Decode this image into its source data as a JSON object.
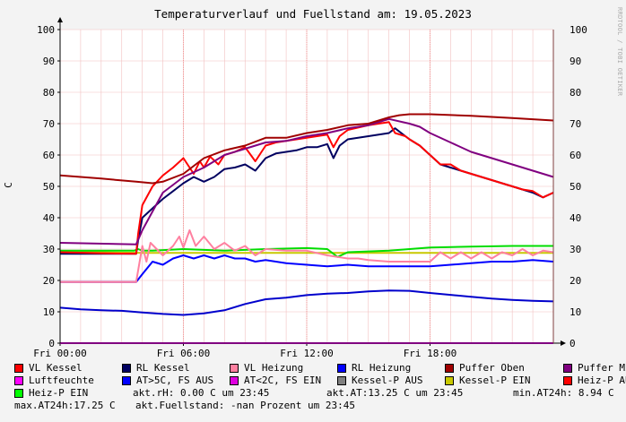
{
  "chart_data": {
    "type": "line",
    "title": "Temperaturverlauf und Fuellstand am: 19.05.2023",
    "side_label": "RRDTOOL / TOBI OETIKER",
    "ylabel": "C",
    "ylim": [
      0,
      100
    ],
    "yticks": [
      0,
      10,
      20,
      30,
      40,
      50,
      60,
      70,
      80,
      90,
      100
    ],
    "xlim_hours": [
      0,
      24
    ],
    "xticks": [
      {
        "h": 0,
        "label": "Fri 00:00"
      },
      {
        "h": 6,
        "label": "Fri 06:00"
      },
      {
        "h": 12,
        "label": "Fri 12:00"
      },
      {
        "h": 18,
        "label": "Fri 18:00"
      }
    ],
    "series": [
      {
        "name": "Puffer Oben",
        "color": "#a00000",
        "x": [
          0,
          2,
          3.7,
          4.5,
          5,
          6,
          7,
          8,
          9,
          10,
          11,
          12,
          13,
          14,
          15,
          16,
          16.5,
          17,
          18,
          20,
          22,
          24
        ],
        "y": [
          53.5,
          52.5,
          51.5,
          51,
          51.5,
          54,
          59,
          61.5,
          63,
          65.5,
          65.5,
          67,
          68,
          69.5,
          70,
          72,
          72.7,
          73,
          73,
          72.5,
          71.8,
          71
        ]
      },
      {
        "name": "Puffer Mitte",
        "color": "#800080",
        "x": [
          0,
          3.7,
          4,
          4.5,
          5,
          6,
          7,
          8,
          9,
          10,
          11,
          12,
          13,
          14,
          15,
          16,
          17,
          17.5,
          18,
          19,
          20,
          21,
          22,
          23,
          24
        ],
        "y": [
          32,
          31.5,
          36,
          42,
          48,
          53,
          56,
          60,
          62,
          64,
          64.5,
          66,
          67,
          68.5,
          69.5,
          71.5,
          70,
          69,
          67,
          64,
          61,
          59,
          57,
          55,
          53
        ]
      },
      {
        "name": "VL Kessel",
        "color": "#ff0000",
        "x": [
          0,
          2,
          3.7,
          3.8,
          4,
          4.5,
          5,
          5.5,
          6,
          6.5,
          6.8,
          7,
          7.3,
          7.7,
          8,
          8.5,
          9,
          9.5,
          10,
          10.5,
          11,
          12,
          13,
          13.3,
          13.6,
          14,
          15,
          16,
          16.3,
          16.8,
          17,
          17.5,
          18,
          18.5,
          19,
          19.5,
          20,
          20.5,
          21,
          21.5,
          22,
          22.5,
          23,
          23.5,
          24
        ],
        "y": [
          29,
          28.7,
          28.5,
          35,
          44,
          50,
          53.5,
          56,
          59,
          54,
          58,
          56,
          59.5,
          57,
          60,
          61,
          62.5,
          58,
          63,
          64,
          64.5,
          65.5,
          66.5,
          62.5,
          66,
          68,
          69.5,
          70.5,
          67,
          66,
          65,
          63,
          60,
          57,
          57,
          55,
          54,
          53,
          52,
          51,
          50,
          49,
          48.5,
          46.5,
          48
        ]
      },
      {
        "name": "RL Kessel",
        "color": "#000060",
        "x": [
          0,
          2,
          3.7,
          3.8,
          4,
          4.5,
          5,
          5.5,
          6,
          6.5,
          7,
          7.5,
          8,
          8.5,
          9,
          9.5,
          10,
          10.5,
          11,
          11.5,
          12,
          12.5,
          13,
          13.3,
          13.6,
          14,
          15,
          16,
          16.3,
          16.8,
          17,
          17.5,
          18,
          18.5,
          19,
          19.5,
          20,
          20.5,
          21,
          21.5,
          22,
          22.5,
          23,
          23.5,
          24
        ],
        "y": [
          28.5,
          28.5,
          28.5,
          33,
          40,
          43,
          46,
          48.5,
          51,
          53,
          51.5,
          53,
          55.5,
          56,
          57,
          55,
          59,
          60.5,
          61,
          61.5,
          62.5,
          62.5,
          63.5,
          59,
          63,
          65,
          66,
          67,
          68.5,
          66,
          65,
          63,
          60,
          57,
          56,
          55,
          54,
          53,
          52,
          51,
          50,
          49,
          48,
          46.5,
          48
        ]
      },
      {
        "name": "VL Heizung",
        "color": "#ff80a0",
        "x": [
          0,
          2,
          3.7,
          4,
          4.2,
          4.4,
          5,
          5.5,
          5.8,
          6,
          6.3,
          6.6,
          7,
          7.5,
          8,
          8.5,
          9,
          9.5,
          10,
          11,
          12,
          13,
          14,
          14.5,
          15,
          16,
          17,
          18,
          18.5,
          19,
          19.5,
          20,
          20.5,
          21,
          21.5,
          22,
          22.5,
          23,
          23.5,
          24
        ],
        "y": [
          19.5,
          19.5,
          19.5,
          31,
          26,
          32,
          28,
          31,
          34,
          30.5,
          36,
          31,
          34,
          30,
          32,
          29.5,
          31,
          28,
          30,
          29.5,
          29.5,
          28,
          27,
          27,
          26.5,
          26,
          26,
          26,
          29,
          27,
          29,
          27,
          29,
          27,
          29,
          28,
          30,
          28,
          29.5,
          29
        ]
      },
      {
        "name": "RL Heizung",
        "color": "#0000ff",
        "x": [
          0,
          2,
          3.7,
          4,
          4.5,
          5,
          5.5,
          6,
          6.5,
          7,
          7.5,
          8,
          8.5,
          9,
          9.5,
          10,
          11,
          12,
          13,
          14,
          15,
          16,
          17,
          18,
          19,
          20,
          21,
          22,
          23,
          24
        ],
        "y": [
          19.5,
          19.5,
          19.5,
          22,
          26,
          25,
          27,
          28,
          27,
          28,
          27,
          28,
          27,
          27,
          26,
          26.5,
          25.5,
          25,
          24.5,
          25,
          24.5,
          24.5,
          24.5,
          24.5,
          25,
          25.5,
          26,
          26,
          26.5,
          26
        ]
      },
      {
        "name": "AT>5C, FS AUS",
        "color": "#0000cc",
        "x": [
          0,
          1,
          2,
          3,
          4,
          5,
          6,
          7,
          8,
          9,
          10,
          11,
          12,
          13,
          14,
          15,
          16,
          17,
          18,
          19,
          20,
          21,
          22,
          23,
          24
        ],
        "y": [
          11.3,
          10.8,
          10.5,
          10.3,
          9.8,
          9.3,
          9,
          9.5,
          10.5,
          12.5,
          14,
          14.5,
          15.3,
          15.8,
          16,
          16.5,
          16.8,
          16.7,
          16,
          15.4,
          14.8,
          14.2,
          13.8,
          13.5,
          13.3
        ]
      },
      {
        "name": "Heiz-P EIN",
        "color": "#00dd00",
        "x": [
          0,
          3.5,
          3.6,
          3.8,
          4,
          4.5,
          6,
          8,
          10,
          12,
          13,
          13.5,
          14,
          16,
          18,
          20,
          22,
          24
        ],
        "y": [
          29.5,
          29.5,
          29.5,
          30,
          29.5,
          29.5,
          30,
          29.5,
          30,
          30.3,
          30,
          27.5,
          29,
          29.5,
          30.5,
          30.8,
          31,
          31
        ]
      },
      {
        "name": "Kessel-P EIN",
        "color": "#c8c800",
        "x": [
          0,
          4,
          24
        ],
        "y": [
          29.2,
          28.8,
          28.8
        ]
      },
      {
        "name": "Luftfeuchte",
        "color": "#ff00ff",
        "x": [
          0,
          24
        ],
        "y": [
          0,
          0
        ]
      }
    ]
  },
  "legend": [
    [
      {
        "label": "VL Kessel",
        "color": "#ff0000"
      },
      {
        "label": "RL Kessel",
        "color": "#000060"
      },
      {
        "label": "VL Heizung",
        "color": "#ff80a0"
      },
      {
        "label": "RL Heizung",
        "color": "#0000ff"
      },
      {
        "label": "Puffer Oben",
        "color": "#a00000"
      },
      {
        "label": "Puffer Mitte",
        "color": "#800080"
      }
    ],
    [
      {
        "label": "Luftfeuchte",
        "color": "#ff00ff"
      },
      {
        "label": "AT>5C, FS AUS",
        "color": "#0000ff"
      },
      {
        "label": "AT<2C, FS EIN",
        "color": "#e000e0"
      },
      {
        "label": "Kessel-P AUS",
        "color": "#808080"
      },
      {
        "label": "Kessel-P EIN",
        "color": "#c8c800"
      },
      {
        "label": "Heiz-P AUS",
        "color": "#ff0000"
      }
    ]
  ],
  "heiz_p_ein": {
    "label": "Heiz-P EIN",
    "color": "#00ff00"
  },
  "stats": {
    "rh": "akt.rH: 0.00 C um 23:45",
    "at": "akt.AT:13.25 C um 23:45",
    "min": "min.AT24h: 8.94 C",
    "max": "max.AT24h:17.25 C",
    "fuellstand": "akt.Fuellstand: -nan Prozent um 23:45"
  }
}
